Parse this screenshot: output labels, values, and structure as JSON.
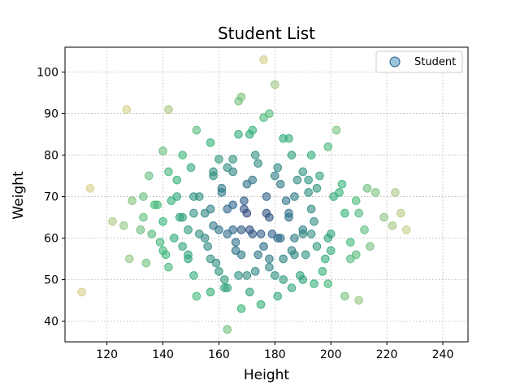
{
  "chart_data": {
    "type": "scatter",
    "title": "Student List",
    "xlabel": "Height",
    "ylabel": "Weight",
    "xlim": [
      105,
      249
    ],
    "ylim": [
      35,
      106
    ],
    "xticks": [
      120,
      140,
      160,
      180,
      200,
      220,
      240
    ],
    "yticks": [
      40,
      50,
      60,
      70,
      80,
      90,
      100
    ],
    "grid": true,
    "legend_position": "top-right",
    "colormap": [
      "#440154",
      "#31688e",
      "#35b779",
      "#d6d08a"
    ],
    "series": [
      {
        "name": "Student",
        "legend_color": "#5b9cc6",
        "x": [
          176,
          180,
          178,
          163,
          127,
          142,
          168,
          167,
          176,
          152,
          210,
          172,
          171,
          167,
          183,
          185,
          157,
          202,
          193,
          199,
          186,
          111,
          114,
          173,
          165,
          174,
          181,
          190,
          140,
          147,
          160,
          145,
          158,
          163,
          192,
          182,
          135,
          133,
          137,
          143,
          151,
          161,
          170,
          187,
          195,
          203,
          213,
          216,
          223,
          129,
          133,
          138,
          146,
          151,
          157,
          165,
          169,
          177,
          185,
          194,
          205,
          210,
          219,
          225,
          122,
          126,
          132,
          140,
          149,
          158,
          165,
          172,
          181,
          190,
          200,
          212,
          222,
          227,
          139,
          147,
          156,
          166,
          176,
          186,
          195,
          209,
          214,
          141,
          149,
          159,
          168,
          178,
          187,
          198,
          207,
          128,
          134,
          142,
          151,
          160,
          170,
          180,
          190,
          199,
          162,
          168,
          175,
          181,
          157,
          152,
          163,
          171,
          186,
          194,
          205,
          162,
          167,
          173,
          178,
          183,
          189,
          197,
          142,
          150,
          158,
          165,
          172,
          180,
          188,
          196,
          204,
          145,
          153,
          161,
          169,
          177,
          184,
          192,
          201,
          209,
          155,
          163,
          171,
          179,
          187,
          193,
          136,
          144,
          153,
          160,
          168,
          175,
          182,
          190,
          199,
          207,
          147,
          155,
          163,
          170,
          178,
          185,
          193,
          140,
          149,
          157,
          166,
          174,
          183,
          191,
          200
        ],
        "y": [
          103,
          97,
          90,
          38,
          91,
          91,
          94,
          93,
          89,
          86,
          45,
          86,
          85,
          85,
          84,
          84,
          83,
          86,
          80,
          82,
          80,
          47,
          72,
          80,
          79,
          78,
          77,
          76,
          81,
          80,
          79,
          74,
          76,
          77,
          74,
          73,
          75,
          70,
          68,
          69,
          70,
          72,
          73,
          70,
          72,
          71,
          72,
          71,
          71,
          69,
          65,
          68,
          65,
          66,
          67,
          68,
          67,
          66,
          65,
          64,
          66,
          66,
          65,
          66,
          64,
          63,
          62,
          64,
          62,
          63,
          62,
          61,
          60,
          62,
          61,
          62,
          63,
          62,
          59,
          58,
          58,
          59,
          58,
          57,
          58,
          56,
          58,
          56,
          55,
          54,
          56,
          55,
          56,
          55,
          55,
          55,
          54,
          53,
          51,
          52,
          51,
          51,
          50,
          49,
          48,
          43,
          44,
          46,
          47,
          46,
          48,
          47,
          48,
          49,
          46,
          50,
          51,
          52,
          53,
          50,
          51,
          52,
          76,
          77,
          75,
          76,
          74,
          75,
          74,
          75,
          73,
          70,
          70,
          71,
          69,
          70,
          69,
          71,
          70,
          69,
          60,
          61,
          62,
          61,
          60,
          61,
          61,
          60,
          61,
          62,
          62,
          61,
          60,
          61,
          60,
          59,
          65,
          66,
          67,
          66,
          65,
          66,
          67,
          57,
          56,
          55,
          57,
          56,
          55,
          56,
          57
        ]
      }
    ]
  }
}
